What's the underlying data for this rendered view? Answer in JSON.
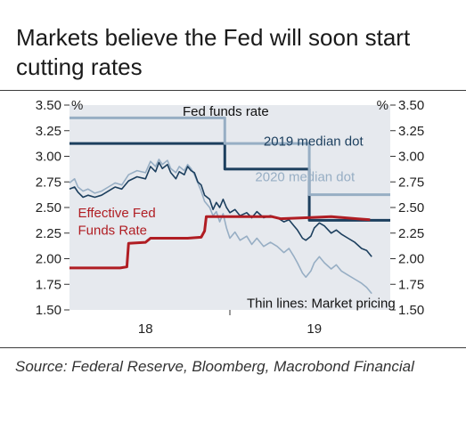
{
  "title": "Markets believe the Fed will soon start cutting rates",
  "source": "Source: Federal Reserve, Bloomberg, Macrobond Financial",
  "colors": {
    "plot_bg": "#e6e9ee",
    "navy": "#1c3f5e",
    "light_blue": "#97aec4",
    "red": "#b01d23",
    "rule": "#3c3c3c"
  },
  "chart_data": {
    "type": "line",
    "title": "",
    "xlabel": "",
    "ylabel": "%",
    "ylabel_right": "%",
    "ylim": [
      1.5,
      3.5
    ],
    "xlim": [
      2017.55,
      2019.45
    ],
    "yticks": [
      "1.50",
      "1.75",
      "2.00",
      "2.25",
      "2.50",
      "2.75",
      "3.00",
      "3.25",
      "3.50"
    ],
    "xticks": [
      {
        "x": 2018.0,
        "label": "18"
      },
      {
        "x": 2019.0,
        "label": "19"
      }
    ],
    "grid": false,
    "annotations": [
      {
        "text": "Fed funds rate",
        "x": 2018.22,
        "y": 3.5
      },
      {
        "text": "2019 median dot",
        "x": 2018.7,
        "y": 3.15
      },
      {
        "text": "2020 median dot",
        "x": 2018.65,
        "y": 2.8
      },
      {
        "text": "Effective Fed",
        "x": 2017.6,
        "y": 2.45
      },
      {
        "text": "Funds Rate",
        "x": 2017.6,
        "y": 2.28
      },
      {
        "text": "Thin lines: Market pricing",
        "x": 2018.6,
        "y": 1.52
      }
    ],
    "series": [
      {
        "name": "2019 median dot",
        "kind": "dot",
        "points": [
          [
            2017.55,
            3.125
          ],
          [
            2018.47,
            3.125
          ],
          [
            2018.47,
            2.875
          ],
          [
            2018.97,
            2.875
          ],
          [
            2018.97,
            2.375
          ],
          [
            2019.45,
            2.375
          ]
        ]
      },
      {
        "name": "2020 median dot",
        "kind": "dot",
        "points": [
          [
            2017.55,
            3.375
          ],
          [
            2018.47,
            3.375
          ],
          [
            2018.47,
            3.125
          ],
          [
            2018.97,
            3.125
          ],
          [
            2018.97,
            2.625
          ],
          [
            2019.45,
            2.625
          ]
        ]
      },
      {
        "name": "Effective Fed Funds Rate",
        "kind": "effr",
        "points": [
          [
            2017.55,
            1.91
          ],
          [
            2017.85,
            1.91
          ],
          [
            2017.89,
            1.92
          ],
          [
            2017.9,
            2.15
          ],
          [
            2018.0,
            2.16
          ],
          [
            2018.03,
            2.2
          ],
          [
            2018.25,
            2.2
          ],
          [
            2018.33,
            2.21
          ],
          [
            2018.35,
            2.27
          ],
          [
            2018.36,
            2.41
          ],
          [
            2018.75,
            2.41
          ],
          [
            2018.8,
            2.39
          ],
          [
            2018.95,
            2.4
          ],
          [
            2019.1,
            2.41
          ],
          [
            2019.25,
            2.39
          ],
          [
            2019.33,
            2.38
          ]
        ]
      },
      {
        "name": "Market pricing (2019 dot)",
        "kind": "pricing",
        "points": [
          [
            2017.55,
            2.68
          ],
          [
            2017.58,
            2.7
          ],
          [
            2017.6,
            2.65
          ],
          [
            2017.63,
            2.6
          ],
          [
            2017.66,
            2.62
          ],
          [
            2017.7,
            2.6
          ],
          [
            2017.74,
            2.62
          ],
          [
            2017.78,
            2.66
          ],
          [
            2017.82,
            2.7
          ],
          [
            2017.86,
            2.68
          ],
          [
            2017.9,
            2.76
          ],
          [
            2017.95,
            2.8
          ],
          [
            2018.0,
            2.78
          ],
          [
            2018.03,
            2.9
          ],
          [
            2018.06,
            2.85
          ],
          [
            2018.08,
            2.94
          ],
          [
            2018.1,
            2.88
          ],
          [
            2018.13,
            2.92
          ],
          [
            2018.15,
            2.84
          ],
          [
            2018.18,
            2.78
          ],
          [
            2018.2,
            2.85
          ],
          [
            2018.23,
            2.82
          ],
          [
            2018.25,
            2.9
          ],
          [
            2018.27,
            2.86
          ],
          [
            2018.29,
            2.84
          ],
          [
            2018.31,
            2.75
          ],
          [
            2018.33,
            2.72
          ],
          [
            2018.35,
            2.62
          ],
          [
            2018.38,
            2.58
          ],
          [
            2018.4,
            2.48
          ],
          [
            2018.42,
            2.55
          ],
          [
            2018.44,
            2.5
          ],
          [
            2018.46,
            2.58
          ],
          [
            2018.48,
            2.5
          ],
          [
            2018.5,
            2.45
          ],
          [
            2018.53,
            2.48
          ],
          [
            2018.56,
            2.42
          ],
          [
            2018.6,
            2.45
          ],
          [
            2018.63,
            2.4
          ],
          [
            2018.66,
            2.46
          ],
          [
            2018.7,
            2.4
          ],
          [
            2018.74,
            2.42
          ],
          [
            2018.78,
            2.4
          ],
          [
            2018.82,
            2.36
          ],
          [
            2018.85,
            2.38
          ],
          [
            2018.88,
            2.32
          ],
          [
            2018.9,
            2.28
          ],
          [
            2018.93,
            2.2
          ],
          [
            2018.95,
            2.18
          ],
          [
            2018.98,
            2.22
          ],
          [
            2019.0,
            2.3
          ],
          [
            2019.03,
            2.35
          ],
          [
            2019.06,
            2.32
          ],
          [
            2019.1,
            2.25
          ],
          [
            2019.13,
            2.28
          ],
          [
            2019.16,
            2.24
          ],
          [
            2019.2,
            2.2
          ],
          [
            2019.24,
            2.16
          ],
          [
            2019.28,
            2.1
          ],
          [
            2019.31,
            2.08
          ],
          [
            2019.34,
            2.02
          ]
        ]
      },
      {
        "name": "Market pricing (2020 dot)",
        "kind": "pricing-light",
        "points": [
          [
            2017.55,
            2.74
          ],
          [
            2017.58,
            2.78
          ],
          [
            2017.6,
            2.7
          ],
          [
            2017.63,
            2.66
          ],
          [
            2017.66,
            2.68
          ],
          [
            2017.7,
            2.64
          ],
          [
            2017.74,
            2.66
          ],
          [
            2017.78,
            2.7
          ],
          [
            2017.82,
            2.74
          ],
          [
            2017.86,
            2.72
          ],
          [
            2017.9,
            2.82
          ],
          [
            2017.95,
            2.86
          ],
          [
            2018.0,
            2.84
          ],
          [
            2018.03,
            2.95
          ],
          [
            2018.06,
            2.9
          ],
          [
            2018.08,
            2.97
          ],
          [
            2018.1,
            2.92
          ],
          [
            2018.13,
            2.96
          ],
          [
            2018.15,
            2.88
          ],
          [
            2018.18,
            2.84
          ],
          [
            2018.2,
            2.9
          ],
          [
            2018.23,
            2.86
          ],
          [
            2018.25,
            2.92
          ],
          [
            2018.27,
            2.88
          ],
          [
            2018.29,
            2.82
          ],
          [
            2018.31,
            2.74
          ],
          [
            2018.33,
            2.66
          ],
          [
            2018.35,
            2.56
          ],
          [
            2018.38,
            2.5
          ],
          [
            2018.4,
            2.42
          ],
          [
            2018.42,
            2.46
          ],
          [
            2018.44,
            2.36
          ],
          [
            2018.46,
            2.44
          ],
          [
            2018.48,
            2.3
          ],
          [
            2018.5,
            2.2
          ],
          [
            2018.53,
            2.26
          ],
          [
            2018.56,
            2.18
          ],
          [
            2018.6,
            2.22
          ],
          [
            2018.63,
            2.14
          ],
          [
            2018.66,
            2.2
          ],
          [
            2018.7,
            2.12
          ],
          [
            2018.74,
            2.16
          ],
          [
            2018.78,
            2.12
          ],
          [
            2018.82,
            2.06
          ],
          [
            2018.85,
            2.1
          ],
          [
            2018.88,
            2.02
          ],
          [
            2018.9,
            1.96
          ],
          [
            2018.93,
            1.86
          ],
          [
            2018.95,
            1.82
          ],
          [
            2018.98,
            1.88
          ],
          [
            2019.0,
            1.96
          ],
          [
            2019.03,
            2.02
          ],
          [
            2019.06,
            1.96
          ],
          [
            2019.1,
            1.9
          ],
          [
            2019.13,
            1.94
          ],
          [
            2019.16,
            1.88
          ],
          [
            2019.2,
            1.84
          ],
          [
            2019.24,
            1.8
          ],
          [
            2019.28,
            1.76
          ],
          [
            2019.31,
            1.72
          ],
          [
            2019.34,
            1.66
          ]
        ]
      }
    ]
  }
}
